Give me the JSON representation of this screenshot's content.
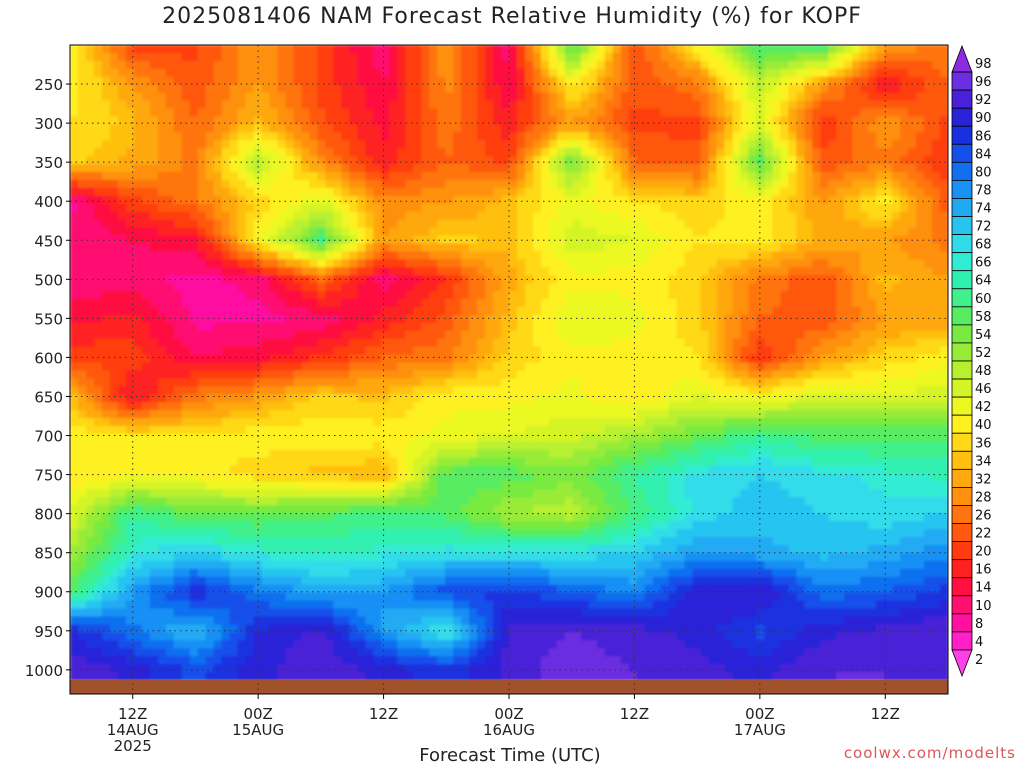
{
  "title": "2025081406 NAM Forecast Relative Humidity (%) for KOPF",
  "xlabel": "Forecast Time (UTC)",
  "credit": "coolwx.com/modelts",
  "chart_data": {
    "type": "heatmap",
    "title": "2025081406 NAM Forecast Relative Humidity (%) for KOPF",
    "xlabel": "Forecast Time (UTC)",
    "ylabel": "",
    "y_axis": "pressure (hPa), inverted",
    "grid": true,
    "x_ticks": [
      {
        "line1": "12Z",
        "line2": "14AUG",
        "line3": "2025",
        "hour": 6
      },
      {
        "line1": "00Z",
        "line2": "15AUG",
        "line3": "",
        "hour": 18
      },
      {
        "line1": "12Z",
        "line2": "",
        "line3": "",
        "hour": 30
      },
      {
        "line1": "00Z",
        "line2": "16AUG",
        "line3": "",
        "hour": 42
      },
      {
        "line1": "12Z",
        "line2": "",
        "line3": "",
        "hour": 54
      },
      {
        "line1": "00Z",
        "line2": "17AUG",
        "line3": "",
        "hour": 66
      },
      {
        "line1": "12Z",
        "line2": "",
        "line3": "",
        "hour": 78
      }
    ],
    "x_range_hours": [
      0,
      84
    ],
    "y_ticks": [
      250,
      300,
      350,
      400,
      450,
      500,
      550,
      600,
      650,
      700,
      750,
      800,
      850,
      900,
      950,
      1000
    ],
    "y_range": [
      200,
      1013
    ],
    "colorbar": {
      "labels": [
        98,
        96,
        92,
        90,
        86,
        84,
        80,
        78,
        74,
        72,
        68,
        66,
        64,
        60,
        58,
        54,
        52,
        48,
        46,
        42,
        40,
        36,
        34,
        32,
        28,
        26,
        22,
        20,
        16,
        14,
        10,
        8,
        4,
        2
      ],
      "colors": [
        "#8b2be2",
        "#6b2ee0",
        "#4a20d8",
        "#2a22d8",
        "#1a30e0",
        "#1550ea",
        "#1070f0",
        "#1890f4",
        "#20aaf4",
        "#28c4f0",
        "#30dcea",
        "#30ecd4",
        "#30f0b0",
        "#40f08a",
        "#58ec60",
        "#78ea40",
        "#98ec38",
        "#b8f030",
        "#d4f428",
        "#ecf820",
        "#fff020",
        "#ffd818",
        "#ffc010",
        "#ffa810",
        "#ff9010",
        "#ff7410",
        "#ff5810",
        "#ff3c10",
        "#ff2020",
        "#ff1040",
        "#ff1070",
        "#ff10a0",
        "#ff20c8",
        "#ff40e8"
      ]
    },
    "levels": [
      200,
      250,
      300,
      350,
      400,
      450,
      500,
      550,
      600,
      650,
      700,
      750,
      800,
      850,
      900,
      950,
      1000
    ],
    "times": [
      0,
      6,
      12,
      18,
      24,
      30,
      36,
      42,
      48,
      54,
      60,
      66,
      72,
      78,
      84
    ],
    "rh": [
      [
        40,
        20,
        20,
        30,
        20,
        10,
        30,
        10,
        60,
        20,
        40,
        60,
        60,
        30,
        26
      ],
      [
        40,
        30,
        22,
        30,
        20,
        12,
        28,
        12,
        40,
        22,
        26,
        48,
        30,
        14,
        24
      ],
      [
        38,
        34,
        24,
        34,
        22,
        14,
        26,
        16,
        30,
        20,
        20,
        44,
        18,
        30,
        20
      ],
      [
        36,
        32,
        26,
        50,
        28,
        16,
        24,
        20,
        56,
        24,
        22,
        58,
        22,
        26,
        18
      ],
      [
        8,
        20,
        26,
        36,
        44,
        28,
        30,
        34,
        42,
        38,
        36,
        40,
        30,
        40,
        22
      ],
      [
        10,
        12,
        14,
        40,
        60,
        30,
        36,
        34,
        46,
        44,
        38,
        40,
        32,
        30,
        26
      ],
      [
        10,
        10,
        8,
        10,
        24,
        10,
        18,
        32,
        40,
        40,
        36,
        26,
        22,
        34,
        30
      ],
      [
        14,
        16,
        8,
        8,
        10,
        16,
        22,
        34,
        44,
        42,
        36,
        24,
        22,
        30,
        30
      ],
      [
        20,
        20,
        12,
        14,
        18,
        24,
        26,
        36,
        40,
        40,
        38,
        18,
        30,
        36,
        40
      ],
      [
        34,
        14,
        26,
        30,
        36,
        34,
        40,
        40,
        42,
        38,
        44,
        40,
        46,
        44,
        46
      ],
      [
        40,
        38,
        38,
        40,
        40,
        40,
        42,
        44,
        46,
        50,
        56,
        62,
        58,
        58,
        58
      ],
      [
        38,
        40,
        40,
        36,
        34,
        32,
        58,
        58,
        54,
        62,
        68,
        70,
        68,
        66,
        64
      ],
      [
        44,
        62,
        56,
        56,
        58,
        60,
        58,
        50,
        48,
        60,
        68,
        72,
        70,
        68,
        70
      ],
      [
        50,
        66,
        70,
        66,
        64,
        66,
        68,
        68,
        68,
        70,
        76,
        74,
        72,
        74,
        78
      ],
      [
        58,
        76,
        88,
        80,
        74,
        76,
        84,
        86,
        82,
        78,
        90,
        92,
        80,
        82,
        86
      ],
      [
        88,
        80,
        72,
        88,
        92,
        76,
        66,
        92,
        94,
        92,
        90,
        84,
        90,
        92,
        94
      ],
      [
        94,
        90,
        84,
        90,
        94,
        90,
        86,
        92,
        96,
        94,
        92,
        90,
        94,
        94,
        92
      ]
    ]
  }
}
